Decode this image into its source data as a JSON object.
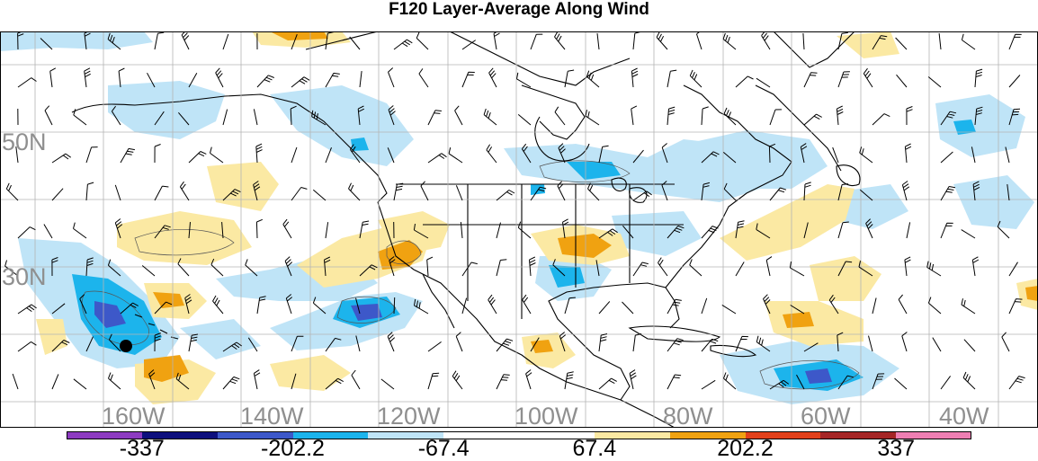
{
  "title": "F120 Layer-Average Along Wind",
  "latitude_labels": [
    "50N",
    "30N"
  ],
  "longitude_labels": [
    "160W",
    "140W",
    "120W",
    "100W",
    "80W",
    "60W",
    "40W"
  ],
  "colors": {
    "ocean_background": "#ffffff",
    "grid": "#b4b4b4",
    "coastline": "#000000",
    "axis_label": "#8f8f8f",
    "light_blue": "#bfe4f7",
    "mid_blue": "#1cb4ec",
    "dark_blue": "#3d58c9",
    "light_yellow": "#fbe9a3",
    "orange": "#f0a211"
  },
  "colorbar": {
    "colors": [
      "#8d3bc1",
      "#0d0f7d",
      "#3d58c9",
      "#1cb4ec",
      "#bfe4f7",
      "#ffffff",
      "#ffffff",
      "#fbe9a3",
      "#f0a211",
      "#e2411b",
      "#a52626",
      "#ee7fb3"
    ],
    "labels": [
      "-337",
      "-202.2",
      "-67.4",
      "67.4",
      "202.2",
      "337"
    ]
  }
}
